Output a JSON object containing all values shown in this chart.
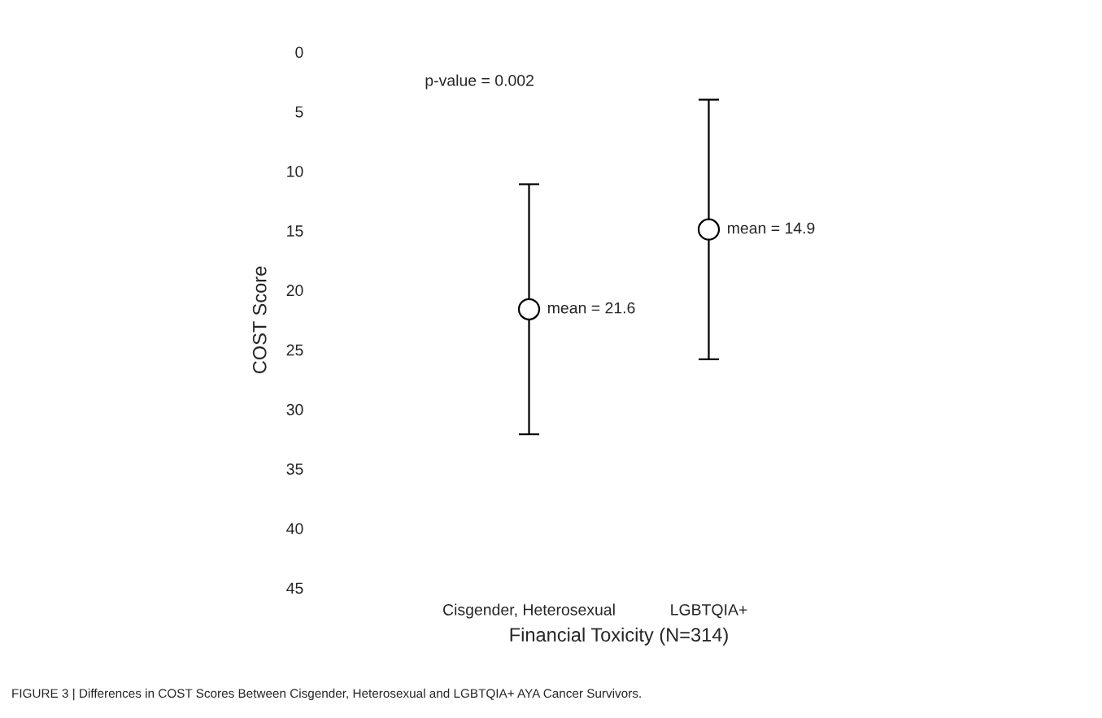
{
  "chart_data": {
    "type": "scatter",
    "categories": [
      "Cisgender, Heterosexual",
      "LGBTQIA+"
    ],
    "series": [
      {
        "color": "#000000",
        "values": [
          21.6,
          14.9
        ],
        "errors": [
          10.5,
          10.9
        ],
        "value_labels": [
          "mean = 21.6",
          "mean = 14.9"
        ]
      }
    ],
    "ylim": [
      45,
      0
    ],
    "yticks": [
      0,
      5,
      10,
      15,
      20,
      25,
      30,
      35,
      40,
      45
    ],
    "ylabel": "COST Score",
    "xlabel": "Financial Toxicity (N=314)",
    "marker": "circle",
    "grid": false,
    "legend": false,
    "annotations": [
      "p-value = 0.002",
      "FIGURE 3 | Differences in COST Scores Between Cisgender, Heterosexual and LGBTQIA+ AYA Cancer Survivors."
    ]
  }
}
